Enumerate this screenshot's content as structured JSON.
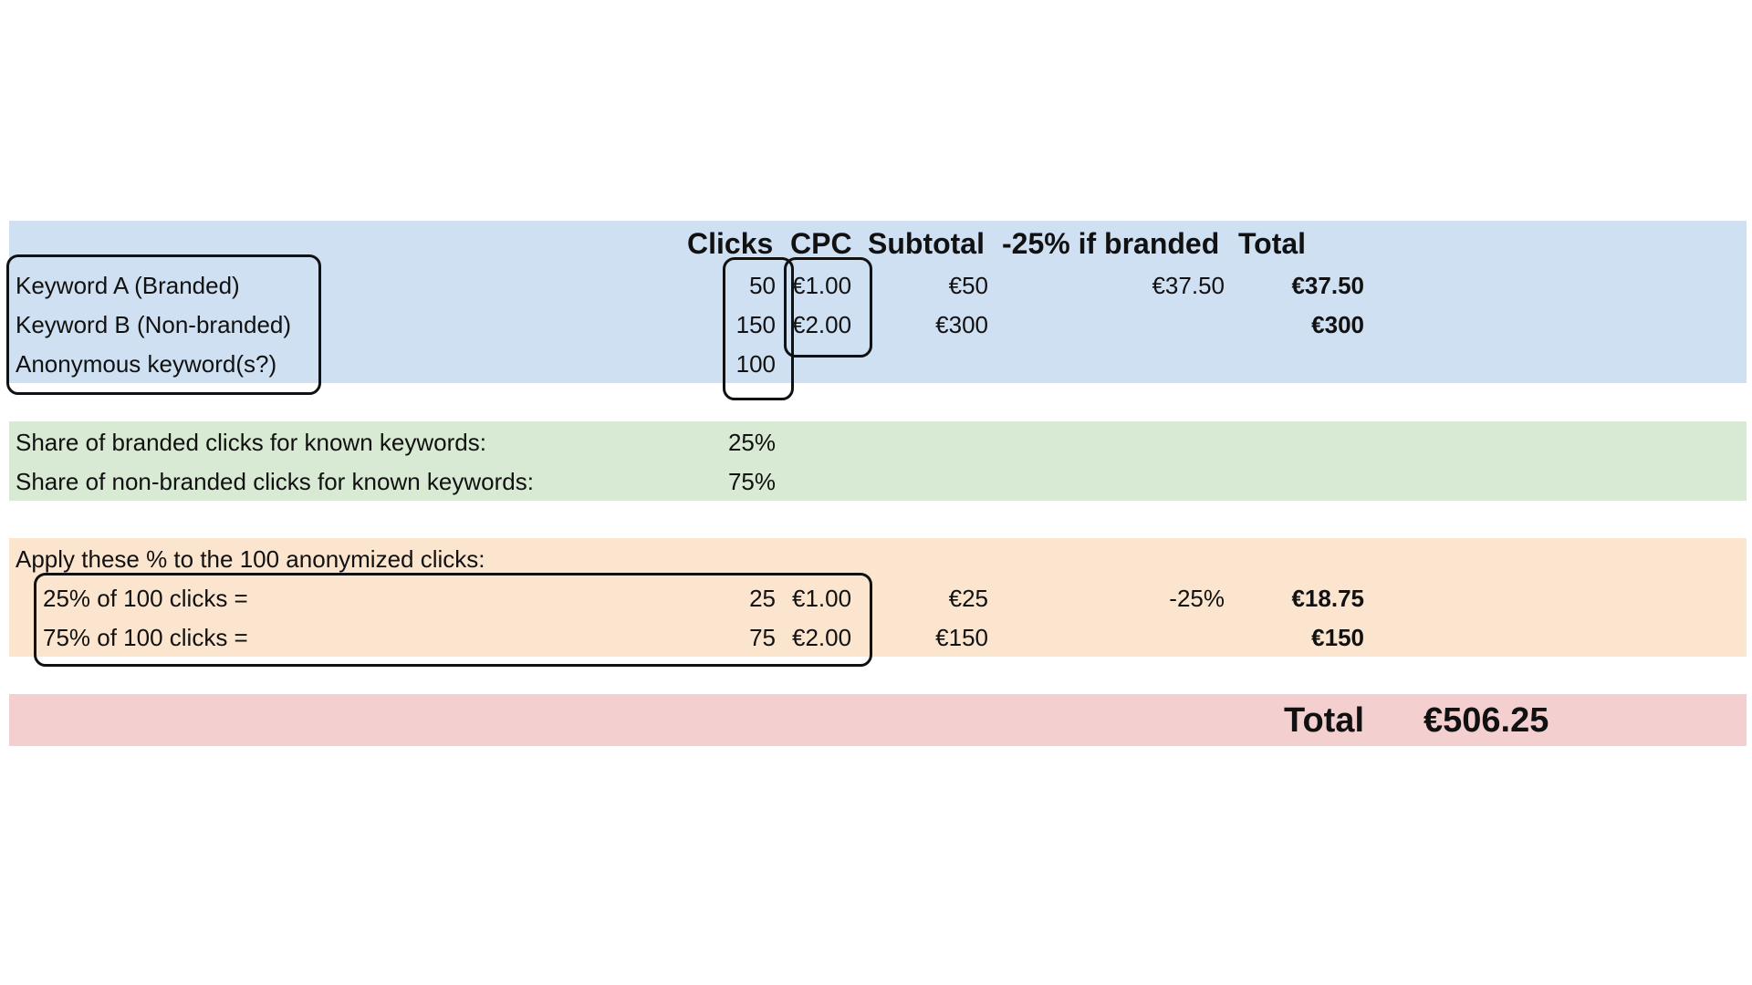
{
  "header": {
    "clicks": "Clicks",
    "cpc": "CPC",
    "subtotal": "Subtotal",
    "discount": "-25% if branded",
    "total": "Total"
  },
  "keywords": [
    {
      "label": "Keyword A (Branded)",
      "clicks": "50",
      "cpc": "€1.00",
      "subtotal": "€50",
      "discount": "€37.50",
      "total": "€37.50"
    },
    {
      "label": "Keyword B (Non-branded)",
      "clicks": "150",
      "cpc": "€2.00",
      "subtotal": "€300",
      "discount": "",
      "total": "€300"
    },
    {
      "label": "Anonymous keyword(s?)",
      "clicks": "100",
      "cpc": "",
      "subtotal": "",
      "discount": "",
      "total": ""
    }
  ],
  "shares": [
    {
      "label": "Share of branded clicks for known keywords:",
      "value": "25%"
    },
    {
      "label": "Share of non-branded clicks for known keywords:",
      "value": "75%"
    }
  ],
  "apply": {
    "title": "Apply these % to the 100 anonymized clicks:",
    "rows": [
      {
        "label": "25% of 100 clicks =",
        "clicks": "25",
        "cpc": "€1.00",
        "subtotal": "€25",
        "discount": "-25%",
        "total": "€18.75"
      },
      {
        "label": "75% of 100 clicks =",
        "clicks": "75",
        "cpc": "€2.00",
        "subtotal": "€150",
        "discount": "",
        "total": "€150"
      }
    ]
  },
  "grand_total": {
    "label": "Total",
    "value": "€506.25"
  },
  "colors": {
    "blue_band": "#cfe0f3",
    "green_band": "#d8ead3",
    "peach_band": "#fbe5cf",
    "red_band": "#f3cfcf"
  }
}
